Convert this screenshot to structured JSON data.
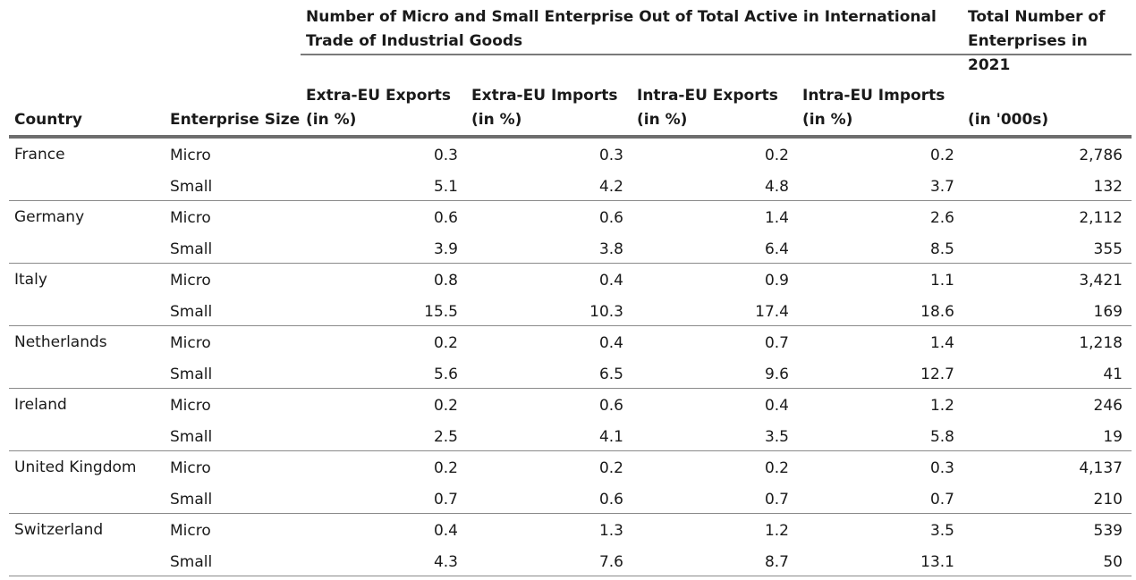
{
  "header": {
    "group_title": "Number of Micro and Small Enterprise Out of Total Active in International Trade of Industrial Goods",
    "total_title": "Total Number of Enterprises in 2021",
    "columns": {
      "country": "Country",
      "size": "Enterprise Size",
      "extra_exports": [
        "Extra-EU Exports",
        "(in %)"
      ],
      "extra_imports": [
        "Extra-EU Imports",
        "(in %)"
      ],
      "intra_exports": [
        "Intra-EU Exports",
        "(in %)"
      ],
      "intra_imports": [
        "Intra-EU Imports",
        "(in %)"
      ],
      "total": "(in '000s)"
    }
  },
  "rows": [
    {
      "country": "France",
      "micro": [
        "Micro",
        "0.3",
        "0.3",
        "0.2",
        "0.2",
        "2,786"
      ],
      "small": [
        "Small",
        "5.1",
        "4.2",
        "4.8",
        "3.7",
        "132"
      ]
    },
    {
      "country": "Germany",
      "micro": [
        "Micro",
        "0.6",
        "0.6",
        "1.4",
        "2.6",
        "2,112"
      ],
      "small": [
        "Small",
        "3.9",
        "3.8",
        "6.4",
        "8.5",
        "355"
      ]
    },
    {
      "country": "Italy",
      "micro": [
        "Micro",
        "0.8",
        "0.4",
        "0.9",
        "1.1",
        "3,421"
      ],
      "small": [
        "Small",
        "15.5",
        "10.3",
        "17.4",
        "18.6",
        "169"
      ]
    },
    {
      "country": "Netherlands",
      "micro": [
        "Micro",
        "0.2",
        "0.4",
        "0.7",
        "1.4",
        "1,218"
      ],
      "small": [
        "Small",
        "5.6",
        "6.5",
        "9.6",
        "12.7",
        "41"
      ]
    },
    {
      "country": "Ireland",
      "micro": [
        "Micro",
        "0.2",
        "0.6",
        "0.4",
        "1.2",
        "246"
      ],
      "small": [
        "Small",
        "2.5",
        "4.1",
        "3.5",
        "5.8",
        "19"
      ]
    },
    {
      "country": "United Kingdom",
      "micro": [
        "Micro",
        "0.2",
        "0.2",
        "0.2",
        "0.3",
        "4,137"
      ],
      "small": [
        "Small",
        "0.7",
        "0.6",
        "0.7",
        "0.7",
        "210"
      ]
    },
    {
      "country": "Switzerland",
      "micro": [
        "Micro",
        "0.4",
        "1.3",
        "1.2",
        "3.5",
        "539"
      ],
      "small": [
        "Small",
        "4.3",
        "7.6",
        "8.7",
        "13.1",
        "50"
      ]
    }
  ]
}
